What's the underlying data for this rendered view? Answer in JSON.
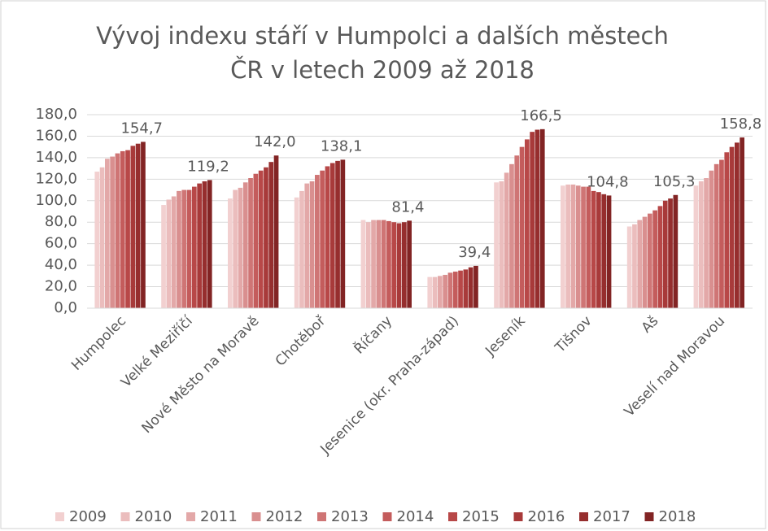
{
  "chart_data": {
    "type": "bar",
    "title": [
      "Vývoj indexu stáří v Humpolci a dalších městech",
      "ČR v letech 2009 až 2018"
    ],
    "categories": [
      "Humpolec",
      "Velké Meziříčí",
      "Nové Město na Moravě",
      "Chotěboř",
      "Říčany",
      "Jesenice (okr. Praha-západ)",
      "Jeseník",
      "Tišnov",
      "Aš",
      "Veselí nad Moravou"
    ],
    "series": [
      {
        "name": "2009",
        "color": "#f2d0d0",
        "values": [
          127,
          96,
          102,
          103,
          82,
          29,
          117,
          114,
          76,
          114
        ]
      },
      {
        "name": "2010",
        "color": "#ebbdbd",
        "values": [
          131,
          101,
          110,
          109,
          80,
          29,
          118,
          115,
          78,
          118
        ]
      },
      {
        "name": "2011",
        "color": "#e3a8a8",
        "values": [
          139,
          104,
          112,
          116,
          82,
          30,
          126,
          115,
          82,
          121
        ]
      },
      {
        "name": "2012",
        "color": "#d98f8f",
        "values": [
          141,
          109,
          117,
          118,
          82,
          31,
          134,
          114,
          85,
          128
        ]
      },
      {
        "name": "2013",
        "color": "#cf7575",
        "values": [
          144,
          110,
          121,
          124,
          82,
          33,
          142,
          113,
          88,
          134
        ]
      },
      {
        "name": "2014",
        "color": "#c45c5c",
        "values": [
          146,
          110,
          125,
          128,
          81,
          34,
          150,
          113,
          91,
          138
        ]
      },
      {
        "name": "2015",
        "color": "#b84848",
        "values": [
          147,
          113,
          128,
          132,
          80,
          35,
          157,
          109,
          95,
          145
        ]
      },
      {
        "name": "2016",
        "color": "#a83a3a",
        "values": [
          151,
          116,
          131,
          135,
          79,
          36,
          164,
          108,
          100,
          150
        ]
      },
      {
        "name": "2017",
        "color": "#962e2e",
        "values": [
          153,
          118,
          136,
          137,
          80,
          38,
          166,
          106,
          102,
          154
        ]
      },
      {
        "name": "2018",
        "color": "#822424",
        "values": [
          154.7,
          119.2,
          142.0,
          138.1,
          81.4,
          39.4,
          166.5,
          104.8,
          105.3,
          158.8
        ],
        "value_labels": [
          "154,7",
          "119,2",
          "142,0",
          "138,1",
          "81,4",
          "39,4",
          "166,5",
          "104,8",
          "105,3",
          "158,8"
        ]
      }
    ],
    "ylim": [
      0,
      180
    ],
    "yticks": [
      {
        "value": 0,
        "label": "0,0"
      },
      {
        "value": 20,
        "label": "20,0"
      },
      {
        "value": 40,
        "label": "40,0"
      },
      {
        "value": 60,
        "label": "60,0"
      },
      {
        "value": 80,
        "label": "80,0"
      },
      {
        "value": 100,
        "label": "100,0"
      },
      {
        "value": 120,
        "label": "120,0"
      },
      {
        "value": 140,
        "label": "140,0"
      },
      {
        "value": 160,
        "label": "160,0"
      },
      {
        "value": 180,
        "label": "180,0"
      }
    ],
    "grid": true,
    "legend": "bottom"
  }
}
